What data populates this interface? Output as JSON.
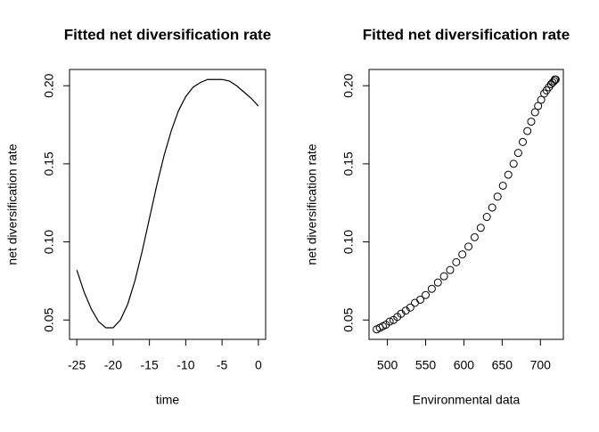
{
  "chart_data": [
    {
      "type": "line",
      "title": "Fitted net diversification rate",
      "xlabel": "time",
      "ylabel": "net diversification rate",
      "x": [
        -25,
        -24,
        -23,
        -22,
        -21,
        -20,
        -19,
        -18,
        -17,
        -16,
        -15,
        -14,
        -13,
        -12,
        -11,
        -10,
        -9,
        -8,
        -7,
        -6,
        -5,
        -4,
        -3,
        -2,
        -1,
        0
      ],
      "values": [
        0.082,
        0.068,
        0.057,
        0.049,
        0.045,
        0.045,
        0.05,
        0.06,
        0.075,
        0.094,
        0.115,
        0.136,
        0.155,
        0.171,
        0.184,
        0.193,
        0.199,
        0.202,
        0.204,
        0.204,
        0.204,
        0.203,
        0.2,
        0.196,
        0.192,
        0.187
      ],
      "color": "#000000",
      "xlim": [
        -26,
        1
      ],
      "ylim": [
        0.0376,
        0.2104
      ],
      "xticks": [
        -25,
        -20,
        -15,
        -10,
        -5,
        0
      ],
      "yticks": [
        {
          "value": 0.05,
          "label": "0.05"
        },
        {
          "value": 0.1,
          "label": "0.10"
        },
        {
          "value": 0.15,
          "label": "0.15"
        },
        {
          "value": 0.2,
          "label": "0.20"
        }
      ]
    },
    {
      "type": "scatter",
      "title": "Fitted net diversification rate",
      "xlabel": "Environmental data",
      "ylabel": "net diversification rate",
      "x": [
        486,
        490,
        494,
        498,
        503,
        508,
        513,
        518,
        524,
        530,
        536,
        543,
        550,
        558,
        566,
        574,
        582,
        590,
        598,
        606,
        614,
        622,
        630,
        637,
        644,
        651,
        658,
        665,
        671,
        677,
        683,
        688,
        693,
        697,
        701,
        705,
        708,
        711,
        714,
        716,
        718,
        719,
        720
      ],
      "values": [
        0.044,
        0.045,
        0.046,
        0.047,
        0.049,
        0.05,
        0.052,
        0.054,
        0.056,
        0.058,
        0.061,
        0.063,
        0.066,
        0.07,
        0.074,
        0.078,
        0.082,
        0.087,
        0.092,
        0.097,
        0.103,
        0.109,
        0.116,
        0.122,
        0.129,
        0.136,
        0.143,
        0.15,
        0.157,
        0.164,
        0.171,
        0.177,
        0.183,
        0.187,
        0.191,
        0.195,
        0.197,
        0.199,
        0.201,
        0.202,
        0.203,
        0.204,
        0.204
      ],
      "color": "#000000",
      "xlim": [
        476,
        730
      ],
      "ylim": [
        0.0376,
        0.2104
      ],
      "xticks": [
        500,
        550,
        600,
        650,
        700
      ],
      "yticks": [
        {
          "value": 0.05,
          "label": "0.05"
        },
        {
          "value": 0.1,
          "label": "0.10"
        },
        {
          "value": 0.15,
          "label": "0.15"
        },
        {
          "value": 0.2,
          "label": "0.20"
        }
      ]
    }
  ]
}
